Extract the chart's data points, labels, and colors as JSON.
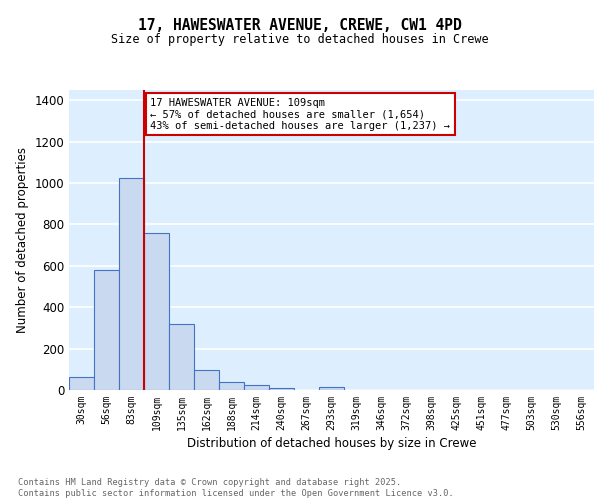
{
  "title_line1": "17, HAWESWATER AVENUE, CREWE, CW1 4PD",
  "title_line2": "Size of property relative to detached houses in Crewe",
  "xlabel": "Distribution of detached houses by size in Crewe",
  "ylabel": "Number of detached properties",
  "bar_categories": [
    "30sqm",
    "56sqm",
    "83sqm",
    "109sqm",
    "135sqm",
    "162sqm",
    "188sqm",
    "214sqm",
    "240sqm",
    "267sqm",
    "293sqm",
    "319sqm",
    "346sqm",
    "372sqm",
    "398sqm",
    "425sqm",
    "451sqm",
    "477sqm",
    "503sqm",
    "530sqm",
    "556sqm"
  ],
  "bar_values": [
    65,
    580,
    1025,
    760,
    320,
    95,
    40,
    25,
    10,
    0,
    15,
    0,
    0,
    0,
    0,
    0,
    0,
    0,
    0,
    0,
    0
  ],
  "bar_color": "#c9d9f0",
  "bar_edge_color": "#4472c4",
  "background_color": "#ddeeff",
  "grid_color": "#ffffff",
  "vline_index": 3,
  "vline_color": "#cc0000",
  "annotation_box_text": "17 HAWESWATER AVENUE: 109sqm\n← 57% of detached houses are smaller (1,654)\n43% of semi-detached houses are larger (1,237) →",
  "annotation_box_color": "#cc0000",
  "footer_text": "Contains HM Land Registry data © Crown copyright and database right 2025.\nContains public sector information licensed under the Open Government Licence v3.0.",
  "ylim": [
    0,
    1450
  ],
  "yticks": [
    0,
    200,
    400,
    600,
    800,
    1000,
    1200,
    1400
  ]
}
